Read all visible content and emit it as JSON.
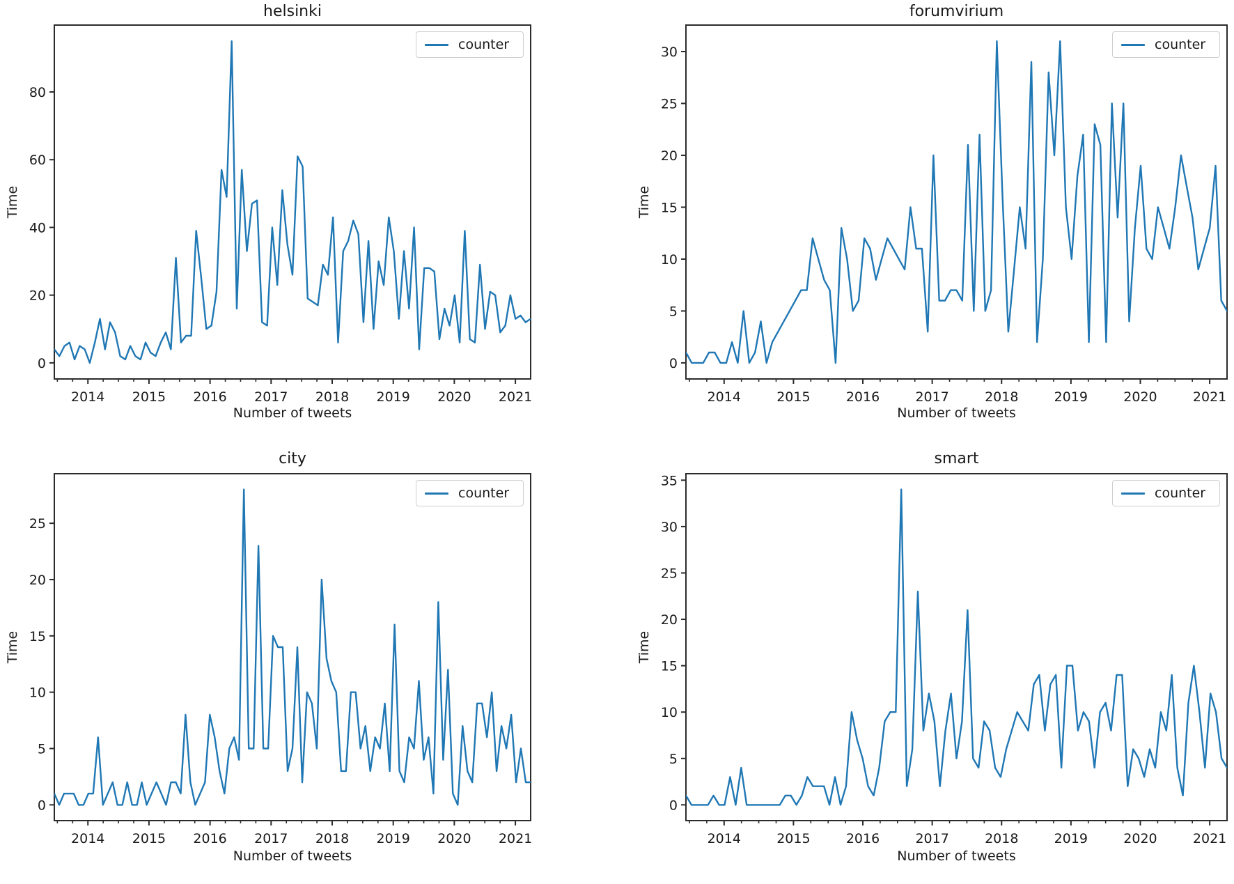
{
  "figure": {
    "background": "#ffffff",
    "text_color": "#1a1a1a",
    "accent": "#1f77b4"
  },
  "chart_data": [
    {
      "id": "helsinki",
      "type": "line",
      "title": "helsinki",
      "xlabel": "Number of tweets",
      "ylabel": "Time",
      "legend_label": "counter",
      "legend_position": "upper right",
      "line_color": "#1f77b4",
      "grid": false,
      "x_start": 2013.45,
      "x_end": 2021.25,
      "xticks": [
        2014,
        2015,
        2016,
        2017,
        2018,
        2019,
        2020,
        2021
      ],
      "yticks": [
        0,
        20,
        40,
        60,
        80
      ],
      "ylim": [
        -4.75,
        99.75
      ],
      "values": [
        4,
        2,
        5,
        6,
        1,
        5,
        4,
        0,
        6,
        13,
        4,
        12,
        9,
        2,
        1,
        5,
        2,
        1,
        6,
        3,
        2,
        6,
        9,
        4,
        31,
        6,
        8,
        8,
        39,
        25,
        10,
        11,
        21,
        57,
        49,
        95,
        16,
        57,
        33,
        47,
        48,
        12,
        11,
        40,
        23,
        51,
        35,
        26,
        61,
        58,
        19,
        18,
        17,
        29,
        26,
        43,
        6,
        33,
        36,
        42,
        38,
        12,
        36,
        10,
        30,
        23,
        43,
        33,
        13,
        33,
        16,
        40,
        4,
        28,
        28,
        27,
        7,
        16,
        11,
        20,
        6,
        39,
        7,
        6,
        29,
        10,
        21,
        20,
        9,
        11,
        20,
        13,
        14,
        12,
        13
      ]
    },
    {
      "id": "forumvirium",
      "type": "line",
      "title": "forumvirium",
      "xlabel": "Number of tweets",
      "ylabel": "Time",
      "legend_label": "counter",
      "legend_position": "upper right",
      "line_color": "#1f77b4",
      "grid": false,
      "x_start": 2013.45,
      "x_end": 2021.25,
      "xticks": [
        2014,
        2015,
        2016,
        2017,
        2018,
        2019,
        2020,
        2021
      ],
      "yticks": [
        0,
        5,
        10,
        15,
        20,
        25,
        30
      ],
      "ylim": [
        -1.55,
        32.55
      ],
      "values": [
        1,
        0,
        0,
        0,
        1,
        1,
        0,
        0,
        2,
        0,
        5,
        0,
        1,
        4,
        0,
        2,
        3,
        4,
        5,
        6,
        7,
        7,
        12,
        10,
        8,
        7,
        0,
        13,
        10,
        5,
        6,
        12,
        11,
        8,
        10,
        12,
        11,
        10,
        9,
        15,
        11,
        11,
        3,
        20,
        6,
        6,
        7,
        7,
        6,
        21,
        5,
        22,
        5,
        7,
        31,
        16,
        3,
        9,
        15,
        11,
        29,
        2,
        10,
        28,
        20,
        31,
        15,
        10,
        18,
        22,
        2,
        23,
        21,
        2,
        25,
        14,
        25,
        4,
        13,
        19,
        11,
        10,
        15,
        13,
        11,
        15,
        20,
        17,
        14,
        9,
        11,
        13,
        19,
        6,
        5
      ]
    },
    {
      "id": "city",
      "type": "line",
      "title": "city",
      "xlabel": "Number of tweets",
      "ylabel": "Time",
      "legend_label": "counter",
      "legend_position": "upper right",
      "line_color": "#1f77b4",
      "grid": false,
      "x_start": 2013.45,
      "x_end": 2021.25,
      "xticks": [
        2014,
        2015,
        2016,
        2017,
        2018,
        2019,
        2020,
        2021
      ],
      "yticks": [
        0,
        5,
        10,
        15,
        20,
        25
      ],
      "ylim": [
        -1.4,
        29.4
      ],
      "values": [
        1,
        0,
        1,
        1,
        1,
        0,
        0,
        1,
        1,
        6,
        0,
        1,
        2,
        0,
        0,
        2,
        0,
        0,
        2,
        0,
        1,
        2,
        1,
        0,
        2,
        2,
        1,
        8,
        2,
        0,
        1,
        2,
        8,
        6,
        3,
        1,
        5,
        6,
        4,
        28,
        5,
        5,
        23,
        5,
        5,
        15,
        14,
        14,
        3,
        5,
        14,
        2,
        10,
        9,
        5,
        20,
        13,
        11,
        10,
        3,
        3,
        10,
        10,
        5,
        7,
        3,
        6,
        5,
        9,
        3,
        16,
        3,
        2,
        6,
        5,
        11,
        4,
        6,
        1,
        18,
        4,
        12,
        1,
        0,
        7,
        3,
        2,
        9,
        9,
        6,
        10,
        3,
        7,
        5,
        8,
        2,
        5,
        2,
        2
      ]
    },
    {
      "id": "smart",
      "type": "line",
      "title": "smart",
      "xlabel": "Number of tweets",
      "ylabel": "Time",
      "legend_label": "counter",
      "legend_position": "upper right",
      "line_color": "#1f77b4",
      "grid": false,
      "x_start": 2013.45,
      "x_end": 2021.25,
      "xticks": [
        2014,
        2015,
        2016,
        2017,
        2018,
        2019,
        2020,
        2021
      ],
      "yticks": [
        0,
        5,
        10,
        15,
        20,
        25,
        30,
        35
      ],
      "ylim": [
        -1.7,
        35.7
      ],
      "values": [
        1,
        0,
        0,
        0,
        0,
        1,
        0,
        0,
        3,
        0,
        4,
        0,
        0,
        0,
        0,
        0,
        0,
        0,
        1,
        1,
        0,
        1,
        3,
        2,
        2,
        2,
        0,
        3,
        0,
        2,
        10,
        7,
        5,
        2,
        1,
        4,
        9,
        10,
        10,
        34,
        2,
        6,
        23,
        8,
        12,
        9,
        2,
        8,
        12,
        5,
        9,
        21,
        5,
        4,
        9,
        8,
        4,
        3,
        6,
        8,
        10,
        9,
        8,
        13,
        14,
        8,
        13,
        14,
        4,
        15,
        15,
        8,
        10,
        9,
        4,
        10,
        11,
        8,
        14,
        14,
        2,
        6,
        5,
        3,
        6,
        4,
        10,
        8,
        14,
        4,
        1,
        11,
        15,
        10,
        4,
        12,
        10,
        5,
        4
      ]
    }
  ]
}
